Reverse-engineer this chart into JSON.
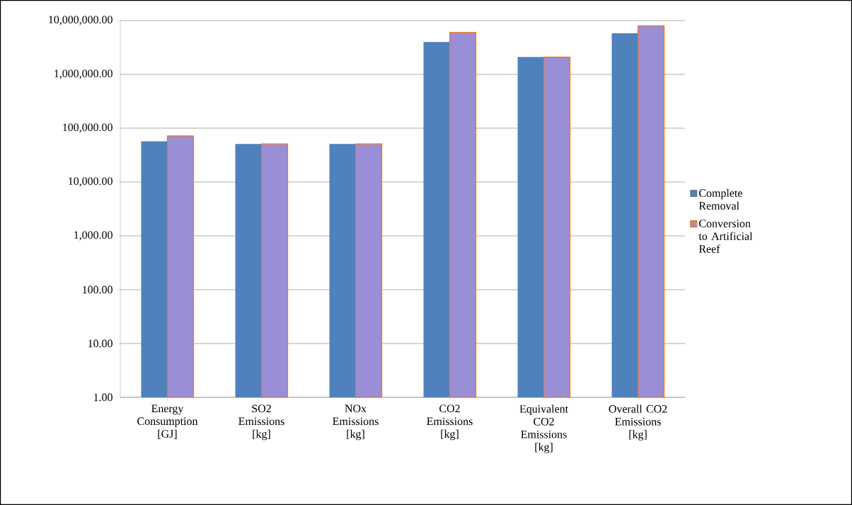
{
  "chart_data": {
    "type": "bar",
    "categories": [
      "Energy Consumption [GJ]",
      "SO2 Emissions [kg]",
      "NOx Emissions [kg]",
      "CO2 Emissions [kg]",
      "Equivalent CO2 Emissions [kg]",
      "Overall CO2 Emissions [kg]"
    ],
    "series": [
      {
        "name": "Complete Removal",
        "color": "#4f81bd",
        "values": [
          57000,
          51000,
          51000,
          4000000,
          2100000,
          5800000
        ]
      },
      {
        "name": "Conversion to Artificial Reef",
        "color": "#9a8ed6",
        "values": [
          72000,
          51000,
          51000,
          6000000,
          2100000,
          8000000
        ]
      }
    ],
    "log": "y",
    "ylim": [
      1,
      10000000
    ],
    "yticks": [
      {
        "value": 1,
        "label": "1.00"
      },
      {
        "value": 10,
        "label": "10.00"
      },
      {
        "value": 100,
        "label": "100.00"
      },
      {
        "value": 1000,
        "label": "1,000.00"
      },
      {
        "value": 10000,
        "label": "10,000.00"
      },
      {
        "value": 100000,
        "label": "100,000.00"
      },
      {
        "value": 1000000,
        "label": "1,000,000.00"
      },
      {
        "value": 10000000,
        "label": "10,000,000.00"
      }
    ],
    "grid": "y",
    "legend": "right"
  }
}
